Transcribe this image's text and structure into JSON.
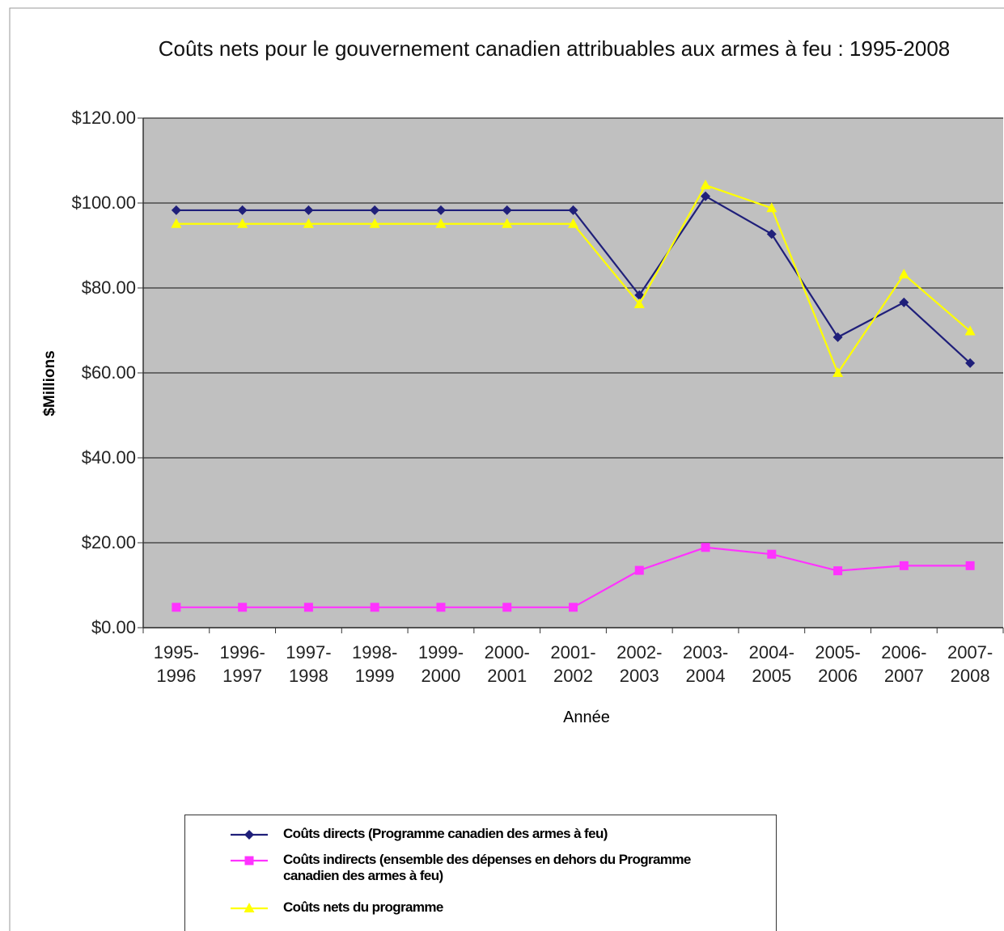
{
  "chart_data": {
    "type": "line",
    "title": "Coûts nets pour le gouvernement canadien attribuables aux armes à feu : 1995-2008",
    "x_label": "Année",
    "y_label": "$Millions",
    "categories": [
      "1995-1996",
      "1996-1997",
      "1997-1998",
      "1998-1999",
      "1999-2000",
      "2000-2001",
      "2001-2002",
      "2002-2003",
      "2003-2004",
      "2004-2005",
      "2005-2006",
      "2006-2007",
      "2007-2008"
    ],
    "series": [
      {
        "name": "Coûts directs (Programme canadien des armes à feu)",
        "color": "#1f1f7a",
        "marker": "diamond",
        "values": [
          98.3,
          98.3,
          98.3,
          98.3,
          98.3,
          98.3,
          98.3,
          78.3,
          101.6,
          92.7,
          68.4,
          76.6,
          62.3
        ]
      },
      {
        "name": "Coûts indirects (ensemble des dépenses en dehors du Programme canadien des armes à feu)",
        "color": "#ff33ff",
        "marker": "square",
        "values": [
          4.8,
          4.8,
          4.8,
          4.8,
          4.8,
          4.8,
          4.8,
          13.5,
          18.9,
          17.3,
          13.4,
          14.6,
          14.6
        ]
      },
      {
        "name": "Coûts nets du programme",
        "color": "#ffff00",
        "marker": "triangle",
        "values": [
          95.1,
          95.1,
          95.1,
          95.1,
          95.1,
          95.1,
          95.1,
          76.2,
          104.2,
          98.8,
          60.0,
          83.2,
          69.8
        ]
      }
    ],
    "ylim": [
      0,
      120
    ],
    "yticks": [
      {
        "value": 0,
        "label": "$0.00"
      },
      {
        "value": 20,
        "label": "$20.00"
      },
      {
        "value": 40,
        "label": "$40.00"
      },
      {
        "value": 60,
        "label": "$60.00"
      },
      {
        "value": 80,
        "label": "$80.00"
      },
      {
        "value": 100,
        "label": "$100.00"
      },
      {
        "value": 120,
        "label": "$120.00"
      }
    ],
    "grid": true,
    "legend": "bottom"
  }
}
